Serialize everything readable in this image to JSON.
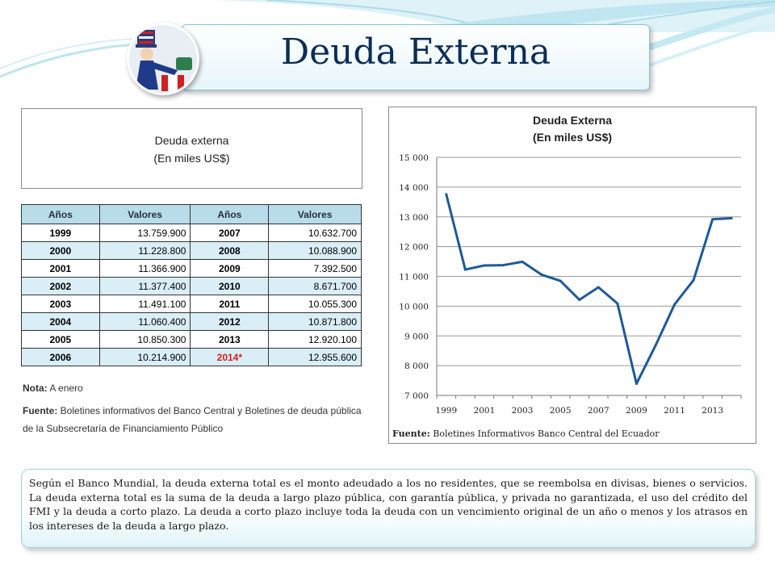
{
  "slide_title": "Deuda Externa",
  "table_title": {
    "line1": "Deuda externa",
    "line2": "(En miles US$)"
  },
  "table": {
    "headers": [
      "Años",
      "Valores",
      "Años",
      "Valores"
    ],
    "rows": [
      {
        "y1": "1999",
        "v1": "13.759.900",
        "y2": "2007",
        "v2": "10.632.700"
      },
      {
        "y1": "2000",
        "v1": "11.228.800",
        "y2": "2008",
        "v2": "10.088.900"
      },
      {
        "y1": "2001",
        "v1": "11.366.900",
        "y2": "2009",
        "v2": "7.392.500"
      },
      {
        "y1": "2002",
        "v1": "11.377.400",
        "y2": "2010",
        "v2": "8.671.700"
      },
      {
        "y1": "2003",
        "v1": "11.491.100",
        "y2": "2011",
        "v2": "10.055.300"
      },
      {
        "y1": "2004",
        "v1": "11.060.400",
        "y2": "2012",
        "v2": "10.871.800"
      },
      {
        "y1": "2005",
        "v1": "10.850.300",
        "y2": "2013",
        "v2": "12.920.100"
      },
      {
        "y1": "2006",
        "v1": "10.214.900",
        "y2": "2014*",
        "v2": "12.955.600"
      }
    ]
  },
  "note": {
    "label": "Nota:",
    "text": " A enero"
  },
  "source_left": {
    "label": "Fuente:",
    "text": " Boletines informativos del Banco Central y Boletines de deuda pública de la Subsecretaría de Financiamiento Público"
  },
  "chart_source": {
    "label": "Fuente:",
    "text": " Boletines Informativos Banco Central del Ecuador"
  },
  "chart_data": {
    "type": "line",
    "title": "Deuda Externa",
    "subtitle": "(En miles US$)",
    "x": [
      1999,
      2000,
      2001,
      2002,
      2003,
      2004,
      2005,
      2006,
      2007,
      2008,
      2009,
      2010,
      2011,
      2012,
      2013,
      2014
    ],
    "series": [
      {
        "values": [
          13759.9,
          11228.8,
          11366.9,
          11377.4,
          11491.1,
          11060.4,
          10850.3,
          10214.9,
          10632.7,
          10088.9,
          7392.5,
          8671.7,
          10055.3,
          10871.8,
          12920.1,
          12955.6
        ]
      }
    ],
    "x_tick_labels": [
      "1999",
      "2001",
      "2003",
      "2005",
      "2007",
      "2009",
      "2011",
      "2013"
    ],
    "y_tick_labels": [
      "15 000",
      "14 000",
      "13 000",
      "12 000",
      "11 000",
      "10 000",
      "9 000",
      "8 000",
      "7 000"
    ],
    "ylim": [
      7000,
      15000
    ],
    "grid": true,
    "line_color": "#1f5a96"
  },
  "description": "Según el Banco Mundial, la deuda externa total es el monto adeudado a los no residentes, que se reembolsa en divisas, bienes o servicios. La deuda externa total es la suma de la deuda a largo plazo pública, con garantía pública, y privada no garantizada, el uso del crédito del FMI y la deuda a corto plazo. La deuda a corto plazo incluye toda la deuda con un vencimiento original de un año o menos y los atrasos en los intereses de la deuda a largo plazo."
}
